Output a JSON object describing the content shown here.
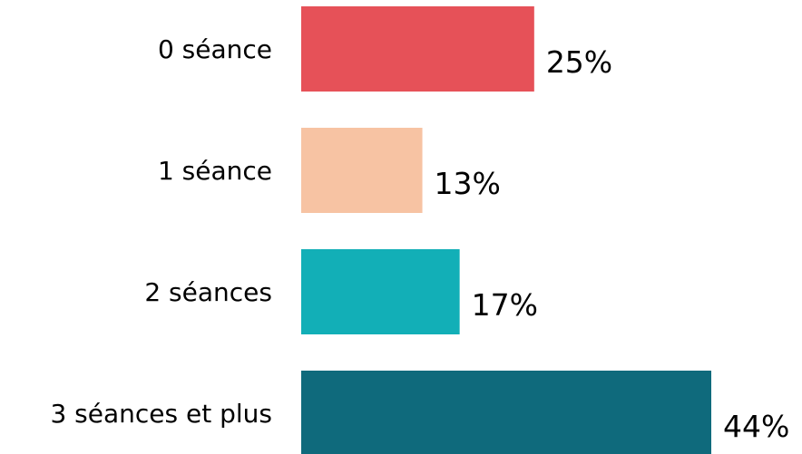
{
  "chart_data": {
    "type": "bar",
    "orientation": "horizontal",
    "categories": [
      "0 séance",
      "1 séance",
      "2 séances",
      "3 séances et plus"
    ],
    "values": [
      25,
      13,
      17,
      44
    ],
    "value_labels": [
      "25%",
      "13%",
      "17%",
      "44%"
    ],
    "unit": "%",
    "title": "",
    "xlabel": "",
    "ylabel": "",
    "xlim": [
      0,
      44
    ],
    "grid": false,
    "legend": "none",
    "colors": [
      "#e65158",
      "#f7c3a3",
      "#12afb7",
      "#0f6a7c"
    ]
  }
}
